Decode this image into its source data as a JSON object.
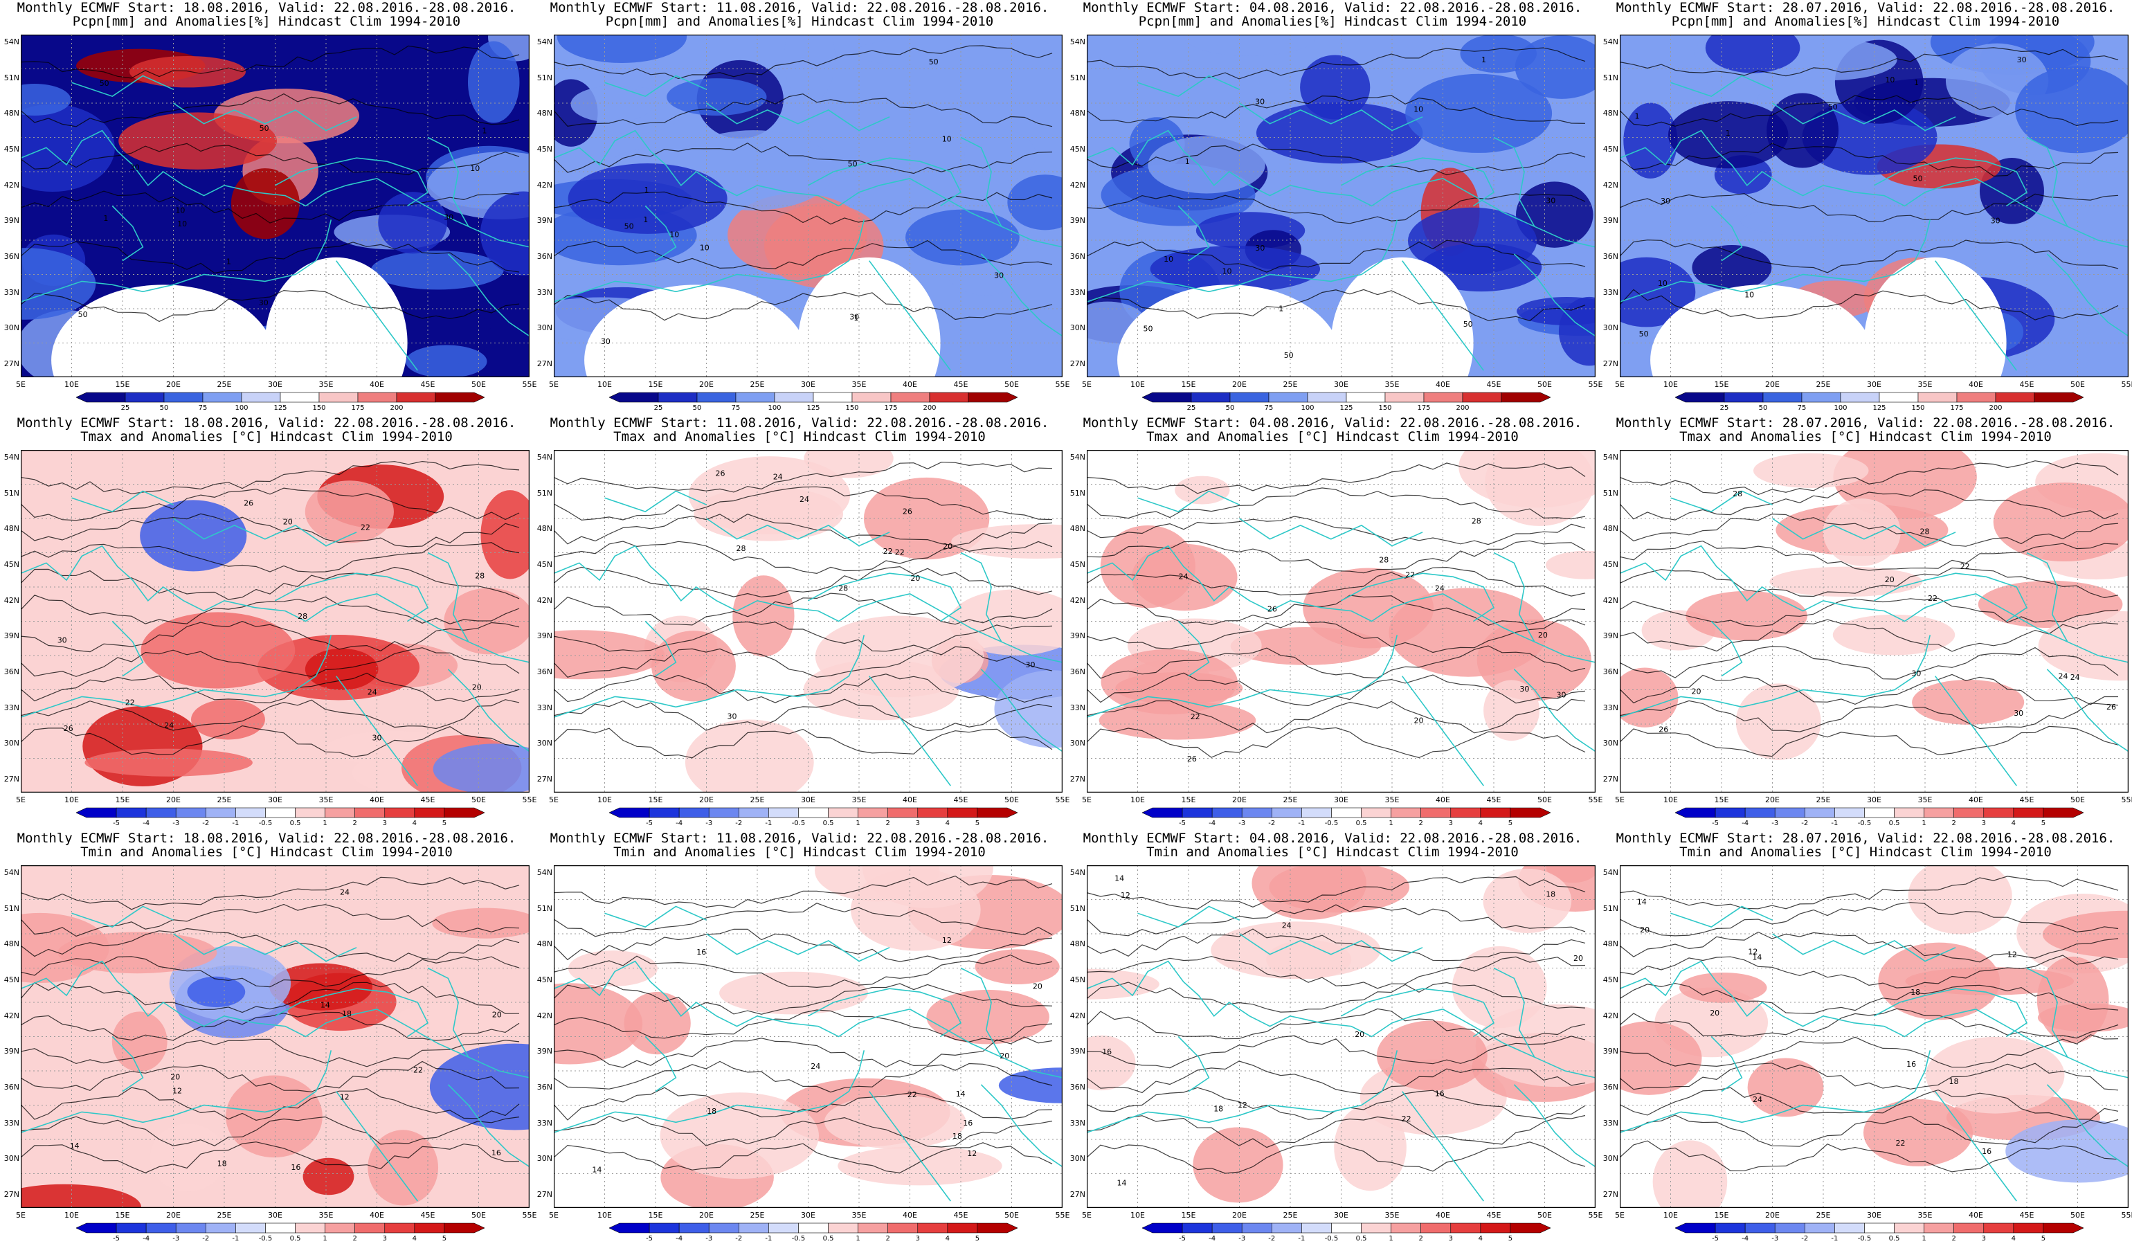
{
  "figure": {
    "lat_labels": [
      "54N",
      "51N",
      "48N",
      "45N",
      "42N",
      "39N",
      "36N",
      "33N",
      "30N",
      "27N"
    ],
    "lon_labels": [
      "5E",
      "10E",
      "15E",
      "20E",
      "25E",
      "30E",
      "35E",
      "40E",
      "45E",
      "50E",
      "55E"
    ],
    "rows": [
      {
        "title_line2": "Pcpn[mm] and Anomalies[%] Hindcast Clim 1994-2010",
        "colorbar_ticks": [
          "25",
          "50",
          "75",
          "100",
          "125",
          "150",
          "175",
          "200"
        ],
        "colorbar_colors": [
          "#08088a",
          "#1d2ec4",
          "#3a64e0",
          "#7f9ff2",
          "#c8d2f8",
          "#ffffff",
          "#f8c6c6",
          "#ef7f7f",
          "#d83030",
          "#a00000"
        ],
        "contour_labels": [
          "1",
          "10",
          "30",
          "50"
        ]
      },
      {
        "title_line2": "Tmax and Anomalies [°C] Hindcast Clim 1994-2010",
        "colorbar_ticks": [
          "-5",
          "-4",
          "-3",
          "-2",
          "-1",
          "-0.5",
          "0.5",
          "1",
          "2",
          "3",
          "4",
          "5"
        ],
        "colorbar_colors": [
          "#0000c8",
          "#1c34dc",
          "#3e5ee8",
          "#6c87f0",
          "#9fb2f6",
          "#d3dcfb",
          "#ffffff",
          "#fbd3d3",
          "#f6a0a0",
          "#f06c6c",
          "#e63e3e",
          "#d41818",
          "#b40000"
        ],
        "contour_labels": [
          "20",
          "22",
          "24",
          "26",
          "28",
          "30"
        ]
      },
      {
        "title_line2": "Tmin and Anomalies [°C] Hindcast Clim 1994-2010",
        "colorbar_ticks": [
          "-5",
          "-4",
          "-3",
          "-2",
          "-1",
          "-0.5",
          "0.5",
          "1",
          "2",
          "3",
          "4",
          "5"
        ],
        "colorbar_colors": [
          "#0000c8",
          "#1c34dc",
          "#3e5ee8",
          "#6c87f0",
          "#9fb2f6",
          "#d3dcfb",
          "#ffffff",
          "#fbd3d3",
          "#f6a0a0",
          "#f06c6c",
          "#e63e3e",
          "#d41818",
          "#b40000"
        ],
        "contour_labels": [
          "12",
          "14",
          "16",
          "18",
          "20",
          "22",
          "24"
        ]
      }
    ],
    "columns": [
      {
        "title_line1": "Monthly ECMWF Start: 18.08.2016, Valid: 22.08.2016.-28.08.2016."
      },
      {
        "title_line1": "Monthly ECMWF Start: 11.08.2016, Valid: 22.08.2016.-28.08.2016."
      },
      {
        "title_line1": "Monthly ECMWF Start: 04.08.2016, Valid: 22.08.2016.-28.08.2016."
      },
      {
        "title_line1": "Monthly ECMWF Start: 28.07.2016, Valid: 22.08.2016.-28.08.2016."
      }
    ],
    "colors": {
      "coastline": "#2ec8c8",
      "contour": "#000000",
      "grid": "#9a9a9a",
      "frame": "#000000"
    }
  }
}
